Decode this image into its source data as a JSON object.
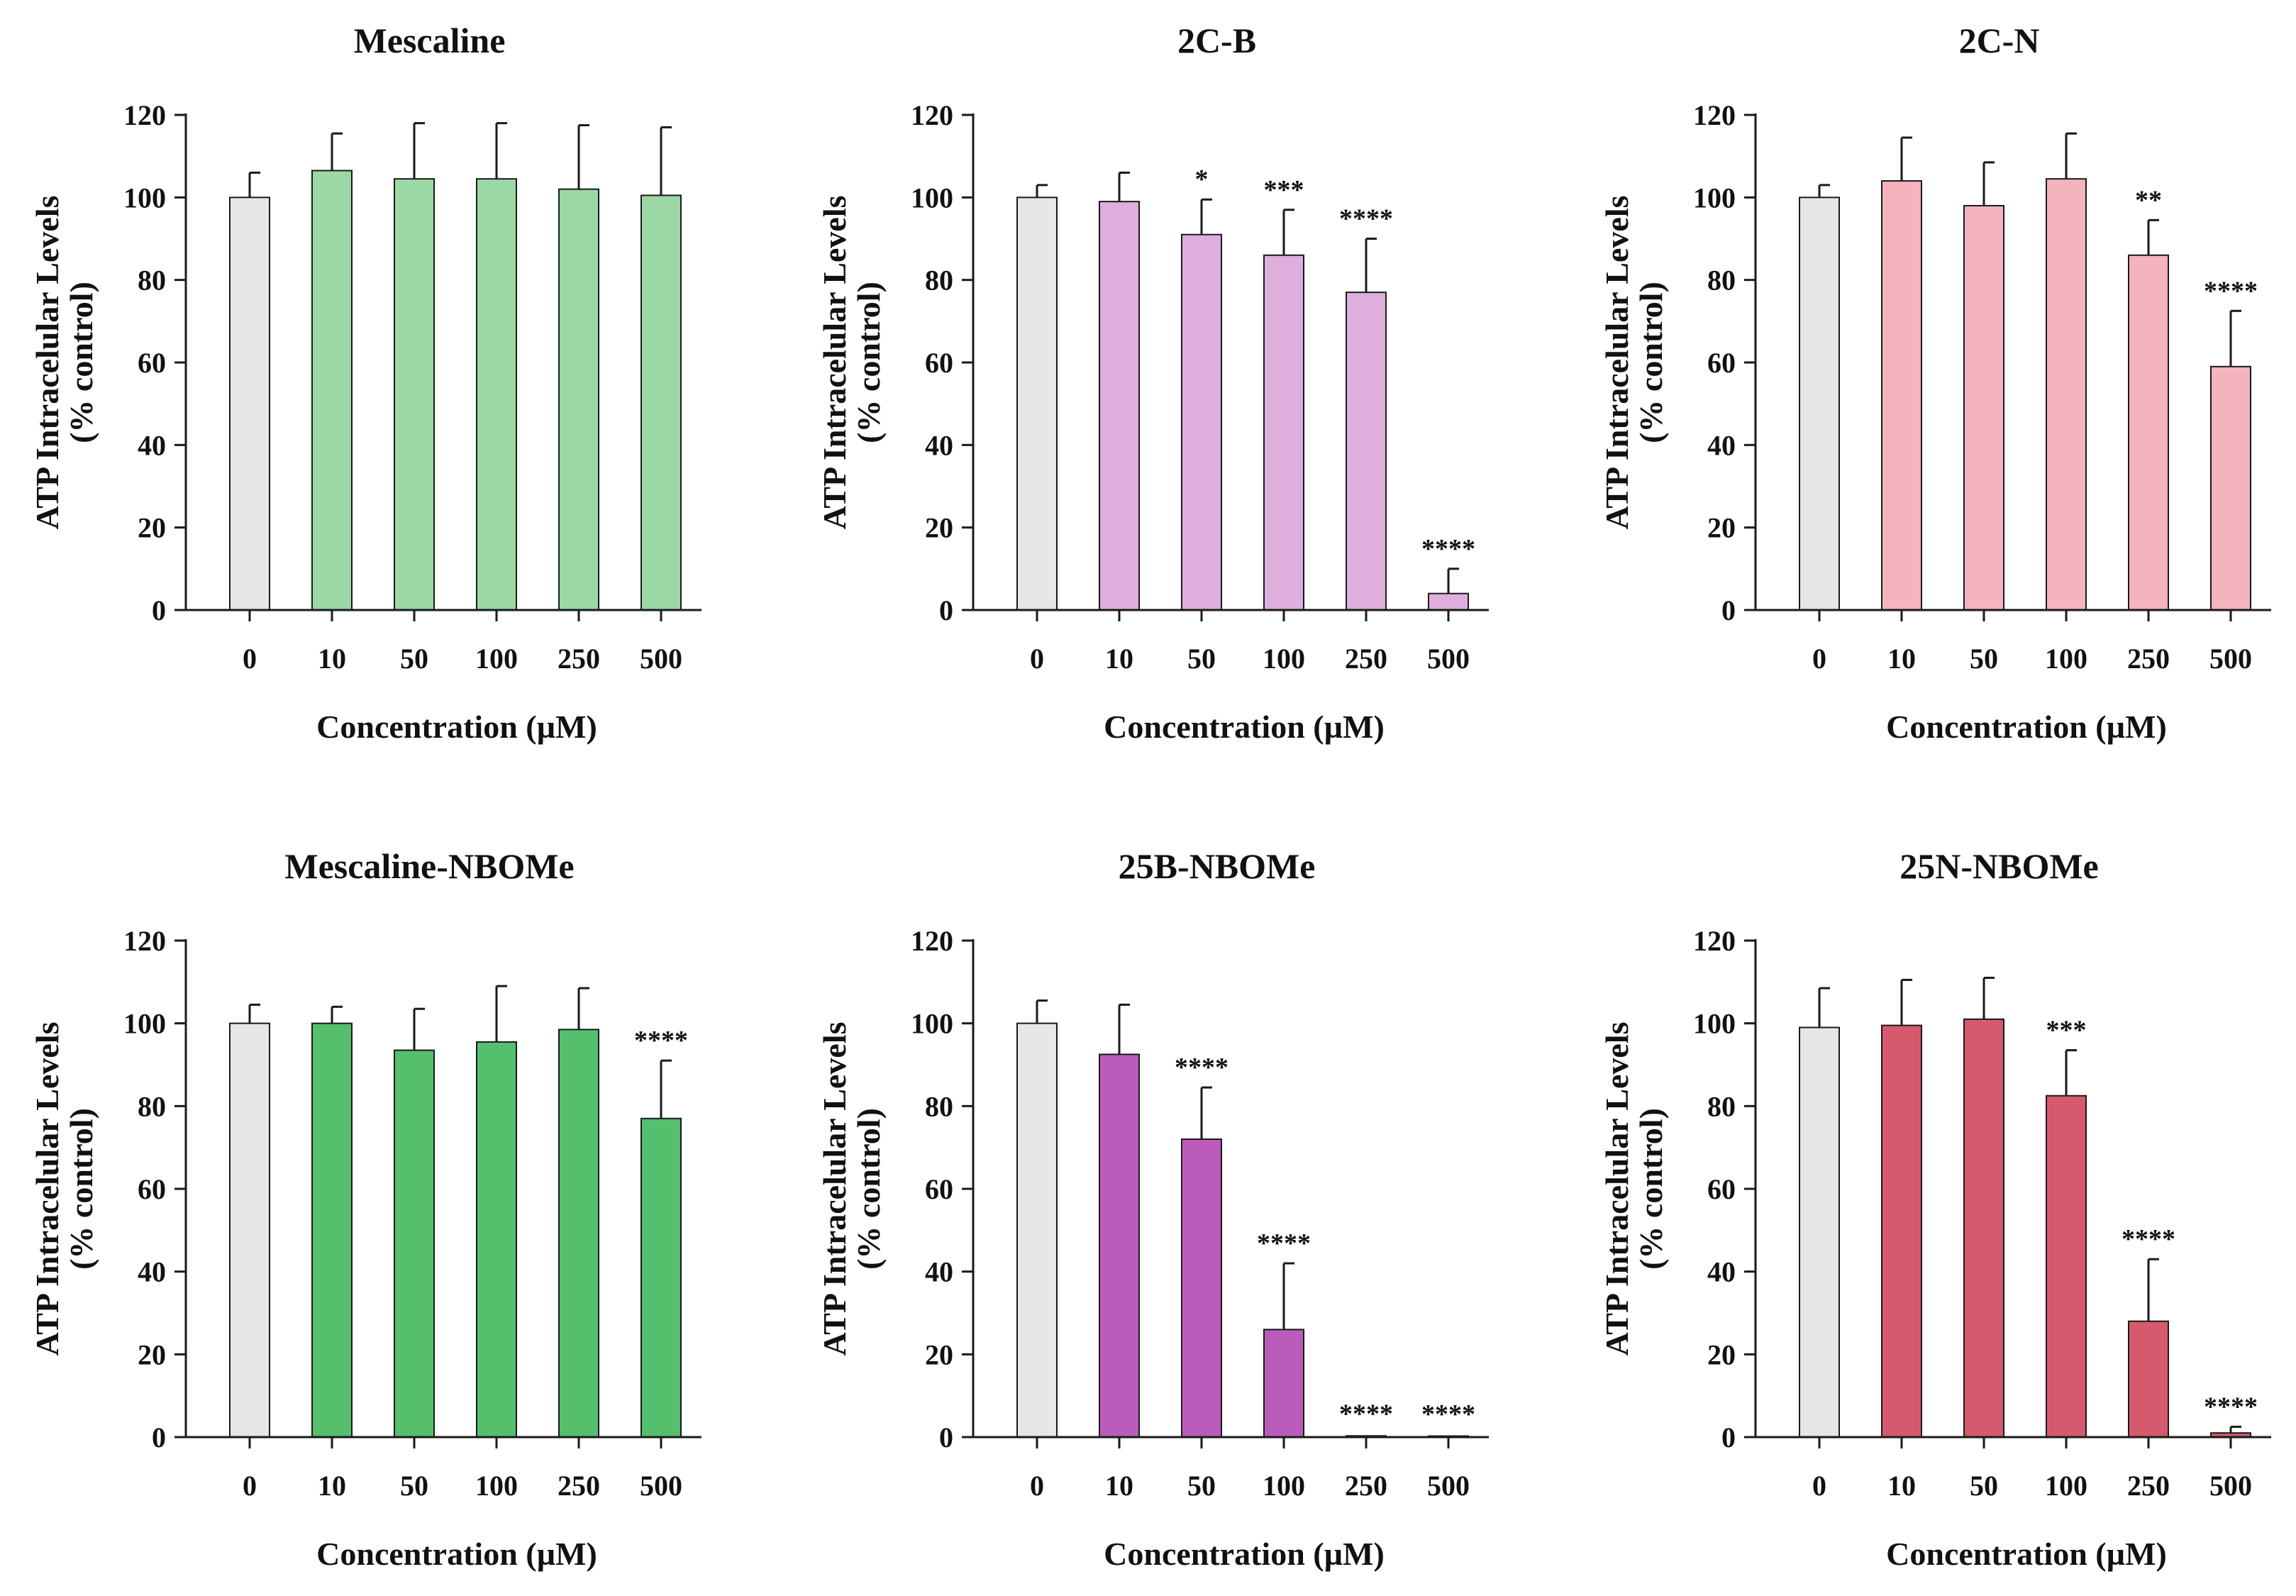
{
  "figure": {
    "x_tick_labels": [
      "0",
      "10",
      "50",
      "100",
      "250",
      "500"
    ],
    "y_ticks": [
      0,
      20,
      40,
      60,
      80,
      100,
      120
    ],
    "xlabel": "Concentration (µM)",
    "ylabel_line1": "ATP Intracelular Levels",
    "ylabel_line2": "(% control)",
    "control_color": "#e6e6e8"
  },
  "chart_data": [
    {
      "type": "bar",
      "title": "Mescaline",
      "categories": [
        "0",
        "10",
        "50",
        "100",
        "250",
        "500"
      ],
      "values": [
        100,
        106.5,
        104.5,
        104.5,
        102,
        100.5
      ],
      "errors": [
        6,
        9,
        13.5,
        13.5,
        15.5,
        16.5
      ],
      "significance": [
        "",
        "",
        "",
        "",
        "",
        ""
      ],
      "color": "#9cd8a5",
      "xlabel": "Concentration (µM)",
      "ylabel": "ATP Intracelular Levels (% control)",
      "ylim": [
        0,
        120
      ]
    },
    {
      "type": "bar",
      "title": "2C-B",
      "categories": [
        "0",
        "10",
        "50",
        "100",
        "250",
        "500"
      ],
      "values": [
        100,
        99,
        91,
        86,
        77,
        4
      ],
      "errors": [
        3,
        7,
        8.5,
        11,
        13,
        6
      ],
      "significance": [
        "",
        "",
        "*",
        "***",
        "****",
        "****"
      ],
      "color": "#deaedd",
      "xlabel": "Concentration (µM)",
      "ylabel": "ATP Intracelular Levels (% control)",
      "ylim": [
        0,
        120
      ]
    },
    {
      "type": "bar",
      "title": "2C-N",
      "categories": [
        "0",
        "10",
        "50",
        "100",
        "250",
        "500"
      ],
      "values": [
        100,
        104,
        98,
        104.5,
        86,
        59
      ],
      "errors": [
        3,
        10.5,
        10.5,
        11,
        8.5,
        13.5
      ],
      "significance": [
        "",
        "",
        "",
        "",
        "**",
        "****"
      ],
      "color": "#f3b4bd",
      "xlabel": "Concentration (µM)",
      "ylabel": "ATP Intracelular Levels (% control)",
      "ylim": [
        0,
        120
      ]
    },
    {
      "type": "bar",
      "title": "Mescaline-NBOMe",
      "categories": [
        "0",
        "10",
        "50",
        "100",
        "250",
        "500"
      ],
      "values": [
        100,
        100,
        93.5,
        95.5,
        98.5,
        77
      ],
      "errors": [
        4.5,
        4,
        10,
        13.5,
        10,
        14
      ],
      "significance": [
        "",
        "",
        "",
        "",
        "",
        "****"
      ],
      "color": "#55bf6d",
      "xlabel": "Concentration (µM)",
      "ylabel": "ATP Intracelular Levels (% control)",
      "ylim": [
        0,
        120
      ]
    },
    {
      "type": "bar",
      "title": "25B-NBOMe",
      "categories": [
        "0",
        "10",
        "50",
        "100",
        "250",
        "500"
      ],
      "values": [
        100,
        92.5,
        72,
        26,
        0.3,
        0.2
      ],
      "errors": [
        5.5,
        12,
        12.5,
        16,
        0.5,
        0.5
      ],
      "significance": [
        "",
        "",
        "****",
        "****",
        "****",
        "****"
      ],
      "color": "#bb5cbb",
      "xlabel": "Concentration (µM)",
      "ylabel": "ATP Intracelular Levels (% control)",
      "ylim": [
        0,
        120
      ]
    },
    {
      "type": "bar",
      "title": "25N-NBOMe",
      "categories": [
        "0",
        "10",
        "50",
        "100",
        "250",
        "500"
      ],
      "values": [
        99,
        99.5,
        101,
        82.5,
        28,
        1
      ],
      "errors": [
        9.5,
        11,
        10,
        11,
        15,
        1.5
      ],
      "significance": [
        "",
        "",
        "",
        "***",
        "****",
        "****"
      ],
      "color": "#d65a6d",
      "xlabel": "Concentration (µM)",
      "ylabel": "ATP Intracelular Levels (% control)",
      "ylim": [
        0,
        120
      ]
    }
  ]
}
